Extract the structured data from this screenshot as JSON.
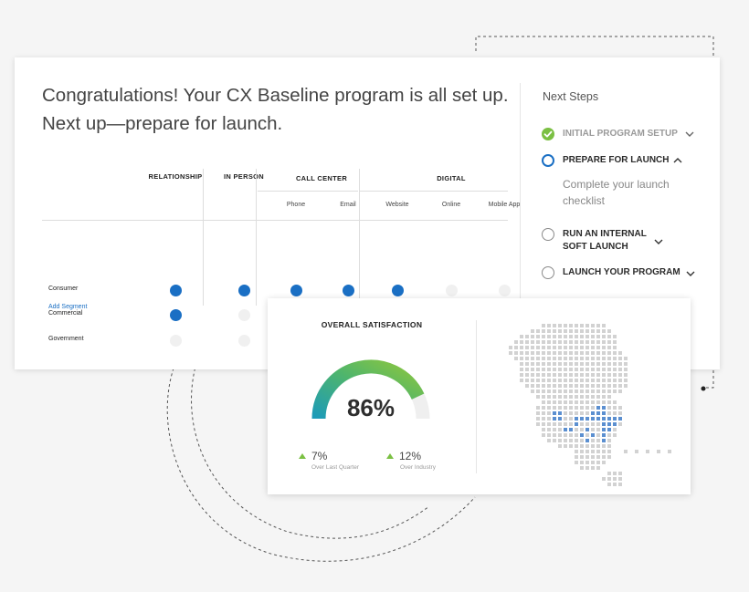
{
  "headline": {
    "line1": "Congratulations! Your CX Baseline program is all set up.",
    "line2": "Next up—prepare for launch."
  },
  "channels": {
    "groups": [
      "RELATIONSHIP",
      "IN PERSON",
      "CALL CENTER",
      "DIGITAL"
    ],
    "subcolumns": [
      "Phone",
      "Email",
      "Website",
      "Online",
      "Mobile App"
    ],
    "rows": [
      {
        "label": "Consumer",
        "active": [
          true,
          true,
          true,
          true,
          true,
          false,
          false
        ]
      },
      {
        "label": "Commercial",
        "active": [
          true,
          false,
          false,
          false,
          false,
          false,
          false
        ]
      },
      {
        "label": "Government",
        "active": [
          false,
          false,
          false,
          false,
          true,
          false,
          false
        ]
      }
    ],
    "add_segment_label": "Add Segment"
  },
  "next_steps": {
    "title": "Next Steps",
    "steps": [
      {
        "line1": "INITIAL PROGRAM SETUP",
        "state": "done",
        "chevron": "down"
      },
      {
        "line1": "PREPARE FOR LAUNCH",
        "state": "active",
        "chevron": "up",
        "description": "Complete your launch checklist"
      },
      {
        "line1": "RUN AN INTERNAL",
        "line2": "SOFT LAUNCH",
        "state": "todo",
        "chevron": "down"
      },
      {
        "line1": "LAUNCH YOUR PROGRAM",
        "state": "todo",
        "chevron": "down"
      }
    ]
  },
  "satisfaction": {
    "title": "OVERALL SATISFACTION",
    "value_label": "86%",
    "value": 86,
    "deltas": [
      {
        "value": "7%",
        "caption": "Over Last Quarter"
      },
      {
        "value": "12%",
        "caption": "Over Industry"
      }
    ]
  },
  "colors": {
    "accent_blue": "#1a6fc4",
    "success_green": "#7bc043",
    "gauge_start": "#1d9bb8",
    "gauge_end": "#8cc63f",
    "inactive_dot": "#f0f0f0"
  },
  "icons": {
    "done": "check-circle-icon",
    "active": "ring-icon",
    "todo": "empty-circle-icon",
    "expand": "chevron-down-icon",
    "collapse": "chevron-up-icon",
    "trend": "triangle-up-icon"
  }
}
